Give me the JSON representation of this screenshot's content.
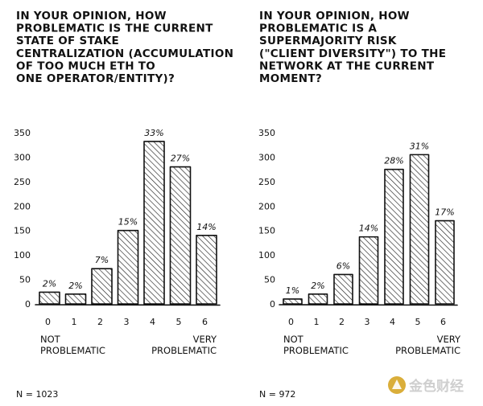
{
  "chart_data": [
    {
      "type": "bar",
      "title": "IN YOUR OPINION, HOW PROBLEMATIC IS THE CURRENT STATE OF STAKE CENTRALIZATION (ACCUMULATION OF TOO MUCH ETH TO ONE OPERATOR/ENTITY)?",
      "title_lines": [
        "IN YOUR OPINION, HOW",
        "PROBLEMATIC IS THE CURRENT",
        "STATE OF STAKE",
        "CENTRALIZATION (ACCUMULATION",
        "OF TOO MUCH ETH TO",
        "ONE OPERATOR/ENTITY)?"
      ],
      "categories": [
        "0",
        "1",
        "2",
        "3",
        "4",
        "5",
        "6"
      ],
      "values": [
        24,
        20,
        72,
        150,
        332,
        280,
        140
      ],
      "labels": [
        "2%",
        "2%",
        "7%",
        "15%",
        "33%",
        "27%",
        "14%"
      ],
      "yticks": [
        "0",
        "50",
        "100",
        "150",
        "200",
        "250",
        "300",
        "350"
      ],
      "ylim": [
        0,
        350
      ],
      "low_label_lines": [
        "NOT",
        "PROBLEMATIC"
      ],
      "high_label_lines": [
        "VERY",
        "PROBLEMATIC"
      ],
      "n_label": "N = 1023",
      "grid": false,
      "bar_fill": "hatched"
    },
    {
      "type": "bar",
      "title": "IN YOUR OPINION, HOW PROBLEMATIC IS A SUPERMAJORITY RISK (\"CLIENT DIVERSITY\") TO THE NETWORK AT THE CURRENT MOMENT?",
      "title_lines": [
        "IN YOUR OPINION, HOW",
        "PROBLEMATIC IS A",
        "SUPERMAJORITY RISK",
        "(\"CLIENT DIVERSITY\") TO THE",
        "NETWORK AT THE CURRENT",
        "MOMENT?"
      ],
      "categories": [
        "0",
        "1",
        "2",
        "3",
        "4",
        "5",
        "6"
      ],
      "values": [
        10,
        20,
        60,
        137,
        275,
        305,
        170
      ],
      "labels": [
        "1%",
        "2%",
        "6%",
        "14%",
        "28%",
        "31%",
        "17%"
      ],
      "yticks": [
        "0",
        "50",
        "100",
        "150",
        "200",
        "250",
        "300",
        "350"
      ],
      "ylim": [
        0,
        350
      ],
      "low_label_lines": [
        "NOT",
        "PROBLEMATIC"
      ],
      "high_label_lines": [
        "VERY",
        "PROBLEMATIC"
      ],
      "n_label": "N = 972",
      "grid": false,
      "bar_fill": "hatched"
    }
  ],
  "watermark": {
    "text": "金色财经",
    "icon": "gold-coin-logo-icon",
    "color": "#d4a017"
  },
  "colors": {
    "ink": "#111111",
    "bar_fill": "#ffffff",
    "hatch": "#222222"
  }
}
